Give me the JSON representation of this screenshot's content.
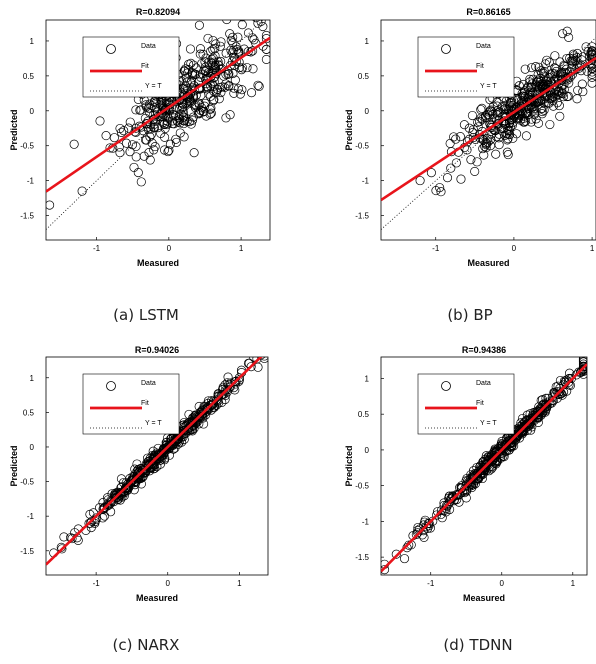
{
  "chart_data": [
    {
      "type": "scatter",
      "title": "R=0.82094",
      "xlabel": "Measured",
      "ylabel": "Predicted",
      "caption": "(a) LSTM",
      "xlim": [
        -1.7,
        1.4
      ],
      "ylim": [
        -1.85,
        1.3
      ],
      "xticks": [
        -1,
        0,
        1
      ],
      "yticks": [
        -1.5,
        -1,
        -0.5,
        0,
        0.5,
        1
      ],
      "legend": {
        "placement": "top-left",
        "entries": [
          "Data",
          "Fit",
          "Y = T"
        ]
      },
      "series": [
        {
          "name": "Data",
          "n": 400,
          "seed": 11,
          "x_mean": 0.25,
          "x_sd": 0.45,
          "noise": 0.28,
          "points": [
            [
              -1.65,
              -1.35
            ],
            [
              -1.2,
              -1.15
            ],
            [
              1.35,
              0.88
            ],
            [
              1.25,
              0.35
            ],
            [
              0.9,
              0.25
            ],
            [
              -0.4,
              0.35
            ],
            [
              0.35,
              -0.6
            ]
          ]
        },
        {
          "name": "Fit",
          "slope": 0.71,
          "intercept": 0.05,
          "color": "#e8141b"
        },
        {
          "name": "Y = T",
          "slope": 1,
          "intercept": 0
        }
      ]
    },
    {
      "type": "scatter",
      "title": "R=0.86165",
      "xlabel": "Measured",
      "ylabel": "Predicted",
      "caption": "(b) BP",
      "xlim": [
        -1.7,
        1.05
      ],
      "ylim": [
        -1.85,
        1.3
      ],
      "xticks": [
        -1,
        0,
        1
      ],
      "yticks": [
        -1.5,
        -1,
        -0.5,
        0,
        0.5,
        1
      ],
      "legend": {
        "placement": "top-left",
        "entries": [
          "Data",
          "Fit",
          "Y = T"
        ]
      },
      "series": [
        {
          "name": "Data",
          "n": 420,
          "seed": 23,
          "x_mean": 0.15,
          "x_sd": 0.42,
          "noise": 0.2,
          "points": [
            [
              -1.2,
              -1.0
            ],
            [
              -0.95,
              -1.1
            ],
            [
              0.7,
              1.05
            ],
            [
              0.5,
              0.2
            ],
            [
              -0.55,
              -0.7
            ],
            [
              0.95,
              0.85
            ]
          ]
        },
        {
          "name": "Fit",
          "slope": 0.74,
          "intercept": -0.02,
          "color": "#e8141b"
        },
        {
          "name": "Y = T",
          "slope": 1,
          "intercept": 0
        }
      ]
    },
    {
      "type": "scatter",
      "title": "R=0.94026",
      "xlabel": "Measured",
      "ylabel": "Predicted",
      "caption": "(c) NARX",
      "xlim": [
        -1.7,
        1.4
      ],
      "ylim": [
        -1.85,
        1.3
      ],
      "xticks": [
        -1,
        0,
        1
      ],
      "yticks": [
        -1.5,
        -1,
        -0.5,
        0,
        0.5,
        1
      ],
      "legend": {
        "placement": "top-left",
        "entries": [
          "Data",
          "Fit",
          "Y = T"
        ]
      },
      "series": [
        {
          "name": "Data",
          "n": 420,
          "seed": 37,
          "x_mean": 0.0,
          "x_sd": 0.55,
          "noise": 0.06,
          "points": [
            [
              -1.45,
              -1.3
            ],
            [
              -1.25,
              -1.35
            ],
            [
              1.0,
              1.0
            ],
            [
              1.2,
              1.3
            ],
            [
              -1.0,
              -1.05
            ],
            [
              0.85,
              0.9
            ]
          ]
        },
        {
          "name": "Fit",
          "slope": 1.0,
          "intercept": 0.0,
          "color": "#e8141b"
        },
        {
          "name": "Y = T",
          "slope": 1,
          "intercept": 0
        }
      ]
    },
    {
      "type": "scatter",
      "title": "R=0.94386",
      "xlabel": "Measured",
      "ylabel": "Predicted",
      "caption": "(d) TDNN",
      "xlim": [
        -1.7,
        1.2
      ],
      "ylim": [
        -1.75,
        1.3
      ],
      "xticks": [
        -1,
        0,
        1
      ],
      "yticks": [
        -1.5,
        -1,
        -0.5,
        0,
        0.5,
        1
      ],
      "legend": {
        "placement": "top-left",
        "entries": [
          "Data",
          "Fit",
          "Y = T"
        ]
      },
      "series": [
        {
          "name": "Data",
          "n": 420,
          "seed": 53,
          "x_mean": 0.0,
          "x_sd": 0.55,
          "noise": 0.06,
          "points": [
            [
              -1.65,
              -1.6
            ],
            [
              -1.1,
              -1.05
            ],
            [
              0.95,
              1.0
            ],
            [
              1.05,
              1.05
            ],
            [
              -1.25,
              -1.2
            ],
            [
              0.9,
              0.95
            ]
          ]
        },
        {
          "name": "Fit",
          "slope": 1.0,
          "intercept": 0.0,
          "color": "#e8141b"
        },
        {
          "name": "Y = T",
          "slope": 1,
          "intercept": 0
        }
      ]
    }
  ]
}
